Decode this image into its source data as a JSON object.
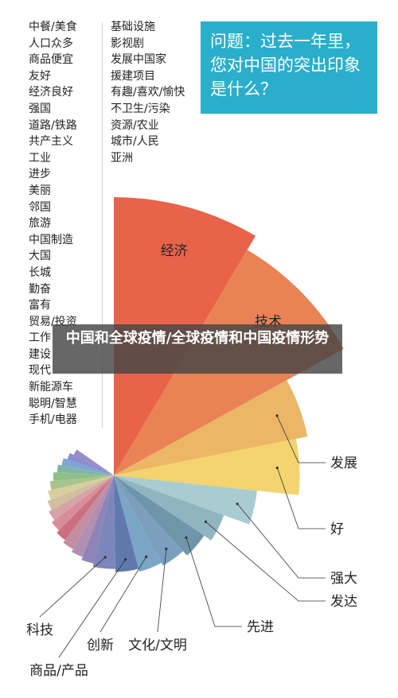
{
  "question": "问题：过去一年里，您对中国的突出印象是什么？",
  "banner": "中国和全球疫情/全球疫情和中国疫情形势",
  "legend_left": [
    "中餐/美食",
    "人口众多",
    "商品便宜",
    "友好",
    "经济良好",
    "强国",
    "道路/铁路",
    "共产主义",
    "工业",
    "进步",
    "美丽",
    "邻国",
    "旅游",
    "中国制造",
    "大国",
    "长城",
    "勤奋",
    "富有",
    "贸易/投资",
    "工作",
    "建设",
    "现代",
    "新能源车",
    "聪明/智慧",
    "手机/电器"
  ],
  "legend_right": [
    "基础设施",
    "影视剧",
    "发展中国家",
    "援建项目",
    "有趣/喜欢/愉快",
    "不卫生/污染",
    "资源/农业",
    "城市/人民",
    "亚洲"
  ],
  "chart_data": {
    "type": "pie",
    "title": "",
    "slices": [
      {
        "label": "经济",
        "value": 100,
        "color": "#e8634a"
      },
      {
        "label": "技术",
        "value": 92,
        "color": "#e98355"
      },
      {
        "label": "发展",
        "value": 62,
        "color": "#ecb667"
      },
      {
        "label": "好",
        "value": 57,
        "color": "#f3d46e"
      },
      {
        "label": "强大",
        "value": 40,
        "color": "#a9ccd0"
      },
      {
        "label": "发达",
        "value": 30,
        "color": "#8fb5c0"
      },
      {
        "label": "先进",
        "value": 27,
        "color": "#6f95ab"
      },
      {
        "label": "文化/文明",
        "value": 25,
        "color": "#7b9fbd"
      },
      {
        "label": "创新",
        "value": 24,
        "color": "#7aa5c5"
      },
      {
        "label": "商品/产品",
        "value": 23,
        "color": "#5f79ad"
      },
      {
        "label": "科技",
        "value": 22,
        "color": "#7c86ba"
      },
      {
        "label": "中餐/美食",
        "value": 21,
        "color": "#8e84b8"
      },
      {
        "label": "人口众多",
        "value": 20,
        "color": "#b28eb1"
      },
      {
        "label": "商品便宜",
        "value": 19,
        "color": "#c58da2"
      },
      {
        "label": "友好",
        "value": 18,
        "color": "#c97080"
      },
      {
        "label": "经济良好",
        "value": 17,
        "color": "#d98d98"
      },
      {
        "label": "强国",
        "value": 16,
        "color": "#d6a4a6"
      },
      {
        "label": "道路/铁路",
        "value": 15,
        "color": "#cfc0a0"
      },
      {
        "label": "共产主义",
        "value": 14,
        "color": "#d8cf9c"
      },
      {
        "label": "工业",
        "value": 13,
        "color": "#a7c48e"
      },
      {
        "label": "进步",
        "value": 12,
        "color": "#8fbf84"
      },
      {
        "label": "美丽",
        "value": 11,
        "color": "#7fb6a6"
      },
      {
        "label": "邻国",
        "value": 10,
        "color": "#7ea6d2"
      },
      {
        "label": "旅游",
        "value": 9,
        "color": "#8a8fd0"
      },
      {
        "label": "中国制造",
        "value": 8,
        "color": "#9a8bc9"
      }
    ]
  }
}
